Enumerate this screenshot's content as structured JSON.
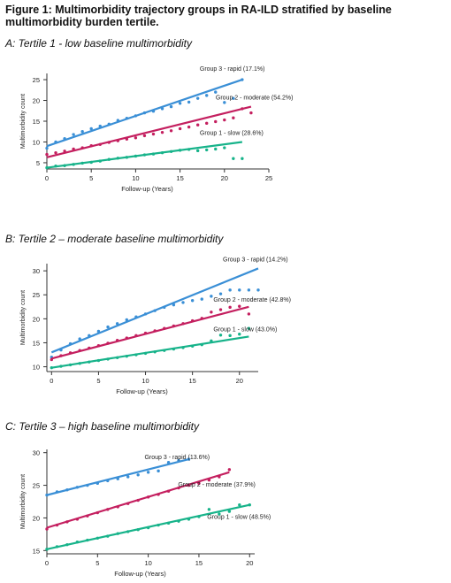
{
  "figure": {
    "title": "Figure 1: Multimorbidity trajectory groups in RA-ILD stratified by baseline multimorbidity burden tertile."
  },
  "colors": {
    "group3": "#3a8fd6",
    "group2": "#c41f5f",
    "group1": "#17b38a",
    "axis": "#333333"
  },
  "chart_data": [
    {
      "type": "line",
      "panel_title": "A: Tertile 1 - low baseline multimorbidity",
      "xlabel": "Follow-up (Years)",
      "ylabel": "Multimorbidity count",
      "xlim": [
        0,
        25
      ],
      "ylim": [
        3.5,
        26.5
      ],
      "xticks": [
        0,
        5,
        10,
        15,
        20,
        25
      ],
      "yticks": [
        5,
        10,
        15,
        20,
        25
      ],
      "series": [
        {
          "name": "Group 3 - rapid (17.1%)",
          "color_key": "group3",
          "fit": [
            [
              0,
              9
            ],
            [
              22,
              25
            ]
          ],
          "points": [
            [
              0,
              8.5
            ],
            [
              1,
              10
            ],
            [
              2,
              10.8
            ],
            [
              3,
              11.8
            ],
            [
              4,
              12.5
            ],
            [
              5,
              13.2
            ],
            [
              6,
              13.8
            ],
            [
              7,
              14.3
            ],
            [
              8,
              15.2
            ],
            [
              9,
              15.7
            ],
            [
              10,
              16.3
            ],
            [
              11,
              17
            ],
            [
              12,
              17.4
            ],
            [
              13,
              18
            ],
            [
              14,
              18.5
            ],
            [
              15,
              19.3
            ],
            [
              16,
              19.6
            ],
            [
              17,
              20.5
            ],
            [
              18,
              21.2
            ],
            [
              19,
              22
            ],
            [
              20,
              19.5
            ],
            [
              21,
              20.5
            ],
            [
              22,
              25
            ]
          ]
        },
        {
          "name": "Group 2 - moderate (54.2%)",
          "color_key": "group2",
          "fit": [
            [
              0,
              6.3
            ],
            [
              23,
              18.5
            ]
          ],
          "points": [
            [
              0,
              7
            ],
            [
              1,
              7.4
            ],
            [
              2,
              7.8
            ],
            [
              3,
              8.3
            ],
            [
              4,
              8.6
            ],
            [
              5,
              9.1
            ],
            [
              6,
              9.4
            ],
            [
              7,
              9.9
            ],
            [
              8,
              10.3
            ],
            [
              9,
              10.7
            ],
            [
              10,
              11
            ],
            [
              11,
              11.5
            ],
            [
              12,
              11.9
            ],
            [
              13,
              12.3
            ],
            [
              14,
              12.7
            ],
            [
              15,
              13.2
            ],
            [
              16,
              13.6
            ],
            [
              17,
              14.1
            ],
            [
              18,
              14.5
            ],
            [
              19,
              14.9
            ],
            [
              20,
              15.3
            ],
            [
              21,
              15.8
            ],
            [
              22,
              18
            ],
            [
              23,
              17
            ]
          ]
        },
        {
          "name": "Group 1 - slow (28.6%)",
          "color_key": "group1",
          "fit": [
            [
              0,
              3.8
            ],
            [
              22,
              10
            ]
          ],
          "points": [
            [
              0,
              3.8
            ],
            [
              1,
              4.2
            ],
            [
              2,
              4.3
            ],
            [
              3,
              4.6
            ],
            [
              4,
              4.9
            ],
            [
              5,
              5.1
            ],
            [
              6,
              5.4
            ],
            [
              7,
              5.8
            ],
            [
              8,
              6.1
            ],
            [
              9,
              6.3
            ],
            [
              10,
              6.6
            ],
            [
              11,
              6.9
            ],
            [
              12,
              7.1
            ],
            [
              13,
              7.4
            ],
            [
              14,
              7.7
            ],
            [
              15,
              8
            ],
            [
              16,
              8.2
            ],
            [
              17,
              7.9
            ],
            [
              18,
              8.1
            ],
            [
              19,
              8.3
            ],
            [
              20,
              8.6
            ],
            [
              21,
              6
            ],
            [
              22,
              6
            ]
          ]
        }
      ]
    },
    {
      "type": "line",
      "panel_title": "B: Tertile 2 – moderate baseline multimorbidity",
      "xlabel": "Follow-up (Years)",
      "ylabel": "Multimorbidity count",
      "xlim": [
        -0.5,
        22
      ],
      "ylim": [
        9,
        31.5
      ],
      "xticks": [
        0,
        5,
        10,
        15,
        20
      ],
      "yticks": [
        10,
        15,
        20,
        25,
        30
      ],
      "series": [
        {
          "name": "Group 3 - rapid (14.2%)",
          "color_key": "group3",
          "fit": [
            [
              0,
              13
            ],
            [
              22,
              30.5
            ]
          ],
          "points": [
            [
              0,
              12
            ],
            [
              1,
              13.5
            ],
            [
              2,
              14.8
            ],
            [
              3,
              15.8
            ],
            [
              4,
              16.5
            ],
            [
              5,
              17.4
            ],
            [
              6,
              18.3
            ],
            [
              7,
              19
            ],
            [
              8,
              19.8
            ],
            [
              9,
              20.4
            ],
            [
              10,
              21
            ],
            [
              11,
              21.7
            ],
            [
              12,
              22.4
            ],
            [
              13,
              22.9
            ],
            [
              14,
              23.4
            ],
            [
              15,
              23.8
            ],
            [
              16,
              24.1
            ],
            [
              17,
              24.7
            ],
            [
              18,
              25.2
            ],
            [
              19,
              26
            ],
            [
              20,
              26
            ],
            [
              21,
              26
            ],
            [
              22,
              26
            ]
          ]
        },
        {
          "name": "Group 2 - moderate (42.8%)",
          "color_key": "group2",
          "fit": [
            [
              0,
              11.7
            ],
            [
              21,
              22.5
            ]
          ],
          "points": [
            [
              0,
              11.5
            ],
            [
              1,
              12.3
            ],
            [
              2,
              12.9
            ],
            [
              3,
              13.4
            ],
            [
              4,
              13.9
            ],
            [
              5,
              14.4
            ],
            [
              6,
              14.9
            ],
            [
              7,
              15.5
            ],
            [
              8,
              16
            ],
            [
              9,
              16.5
            ],
            [
              10,
              17
            ],
            [
              11,
              17.5
            ],
            [
              12,
              18
            ],
            [
              13,
              18.5
            ],
            [
              14,
              19
            ],
            [
              15,
              19.6
            ],
            [
              16,
              20.1
            ],
            [
              17,
              21.4
            ],
            [
              18,
              21.9
            ],
            [
              19,
              22.4
            ],
            [
              20,
              22.6
            ],
            [
              21,
              21
            ]
          ]
        },
        {
          "name": "Group 1 - slow (43.0%)",
          "color_key": "group1",
          "fit": [
            [
              0,
              9.8
            ],
            [
              21,
              16.3
            ]
          ],
          "points": [
            [
              0,
              9.8
            ],
            [
              1,
              10.1
            ],
            [
              2,
              10.4
            ],
            [
              3,
              10.7
            ],
            [
              4,
              11
            ],
            [
              5,
              11.3
            ],
            [
              6,
              11.6
            ],
            [
              7,
              11.9
            ],
            [
              8,
              12.2
            ],
            [
              9,
              12.5
            ],
            [
              10,
              12.8
            ],
            [
              11,
              13.1
            ],
            [
              12,
              13.4
            ],
            [
              13,
              13.7
            ],
            [
              14,
              14
            ],
            [
              15,
              14.3
            ],
            [
              16,
              14.6
            ],
            [
              17,
              15.4
            ],
            [
              18,
              16.6
            ],
            [
              19,
              16.5
            ],
            [
              20,
              16.8
            ],
            [
              21,
              18
            ]
          ]
        }
      ]
    },
    {
      "type": "line",
      "panel_title": "C: Tertile 3 – high baseline multimorbidity",
      "xlabel": "Follow-up (Years)",
      "ylabel": "Multimorbidity count",
      "xlim": [
        0,
        20.5
      ],
      "ylim": [
        14.5,
        30.5
      ],
      "xticks": [
        0,
        5,
        10,
        15,
        20
      ],
      "yticks": [
        15,
        20,
        25,
        30
      ],
      "series": [
        {
          "name": "Group 3 - rapid (13.6%)",
          "color_key": "group3",
          "fit": [
            [
              0,
              23.5
            ],
            [
              14,
              29
            ]
          ],
          "points": [
            [
              0,
              23.5
            ],
            [
              1,
              24
            ],
            [
              2,
              24.3
            ],
            [
              3,
              24.7
            ],
            [
              4,
              25
            ],
            [
              5,
              25.3
            ],
            [
              6,
              25.7
            ],
            [
              7,
              26
            ],
            [
              8,
              26.3
            ],
            [
              9,
              26.6
            ],
            [
              10,
              27
            ],
            [
              11,
              27.2
            ],
            [
              12,
              28.5
            ],
            [
              13,
              28.8
            ],
            [
              14,
              29
            ]
          ]
        },
        {
          "name": "Group 2 - moderate (37.9%)",
          "color_key": "group2",
          "fit": [
            [
              0,
              18.5
            ],
            [
              18,
              27
            ]
          ],
          "points": [
            [
              0,
              18.3
            ],
            [
              1,
              18.9
            ],
            [
              2,
              19.4
            ],
            [
              3,
              19.8
            ],
            [
              4,
              20.3
            ],
            [
              5,
              20.8
            ],
            [
              6,
              21.3
            ],
            [
              7,
              21.7
            ],
            [
              8,
              22.2
            ],
            [
              9,
              22.7
            ],
            [
              10,
              23.2
            ],
            [
              11,
              23.6
            ],
            [
              12,
              24.1
            ],
            [
              13,
              24.6
            ],
            [
              14,
              25
            ],
            [
              15,
              25.3
            ],
            [
              16,
              25.8
            ],
            [
              17,
              26.3
            ],
            [
              18,
              27.4
            ]
          ]
        },
        {
          "name": "Group 1 - slow (48.5%)",
          "color_key": "group1",
          "fit": [
            [
              0,
              15.2
            ],
            [
              20,
              22
            ]
          ],
          "points": [
            [
              0,
              15.2
            ],
            [
              1,
              15.6
            ],
            [
              2,
              15.9
            ],
            [
              3,
              16.3
            ],
            [
              4,
              16.6
            ],
            [
              5,
              16.9
            ],
            [
              6,
              17.2
            ],
            [
              7,
              17.6
            ],
            [
              8,
              17.9
            ],
            [
              9,
              18.2
            ],
            [
              10,
              18.5
            ],
            [
              11,
              18.9
            ],
            [
              12,
              19.2
            ],
            [
              13,
              19.5
            ],
            [
              14,
              19.8
            ],
            [
              15,
              20.2
            ],
            [
              16,
              21.3
            ],
            [
              17,
              20.6
            ],
            [
              18,
              21
            ],
            [
              19,
              22
            ],
            [
              20,
              22
            ]
          ]
        }
      ]
    }
  ]
}
